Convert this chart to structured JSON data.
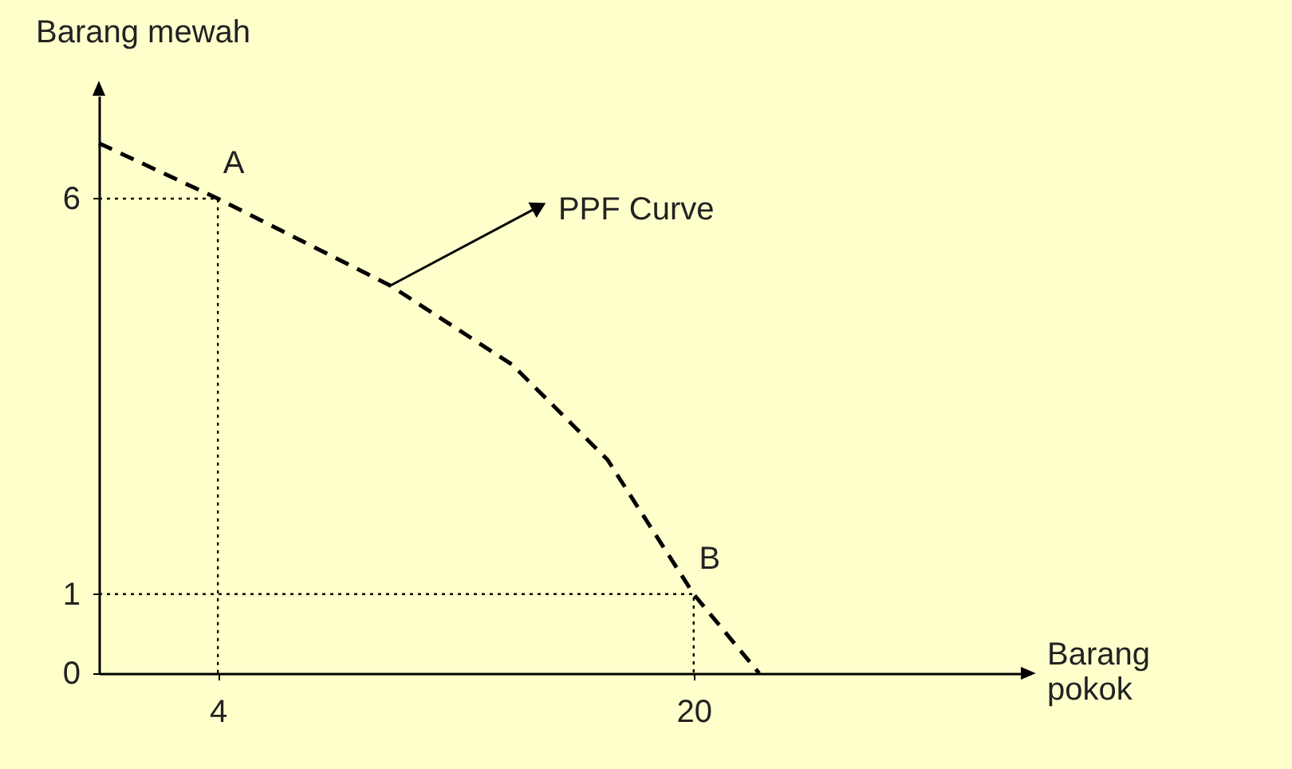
{
  "chart_data": {
    "type": "line",
    "xlabel": "Barang pokok",
    "ylabel": "Barang mewah",
    "xlim": [
      0,
      31
    ],
    "ylim": [
      0,
      7.3
    ],
    "xticks": [
      4,
      20
    ],
    "yticks": [
      0,
      1,
      6
    ],
    "grid": false,
    "marker": "none",
    "series": [
      {
        "color": "#000000",
        "line_style": "dashed",
        "x": [
          0,
          4,
          9.8,
          13.9,
          17.1,
          20,
          22.2
        ],
        "values": [
          6.7,
          6,
          4.9,
          3.9,
          2.7,
          1,
          0
        ]
      },
      {
        "color": "#000000",
        "line_style": "dotted",
        "x": [
          0,
          4,
          4
        ],
        "values": [
          6,
          6,
          0
        ]
      },
      {
        "color": "#000000",
        "line_style": "dotted",
        "x": [
          0,
          20,
          20
        ],
        "values": [
          1,
          1,
          0
        ]
      }
    ],
    "annotations": [
      {
        "text": "A",
        "x": 4,
        "y": 6
      },
      {
        "text": "B",
        "x": 20,
        "y": 1
      },
      {
        "text": "PPF Curve",
        "x": 9.8,
        "y": 4.9
      }
    ]
  }
}
